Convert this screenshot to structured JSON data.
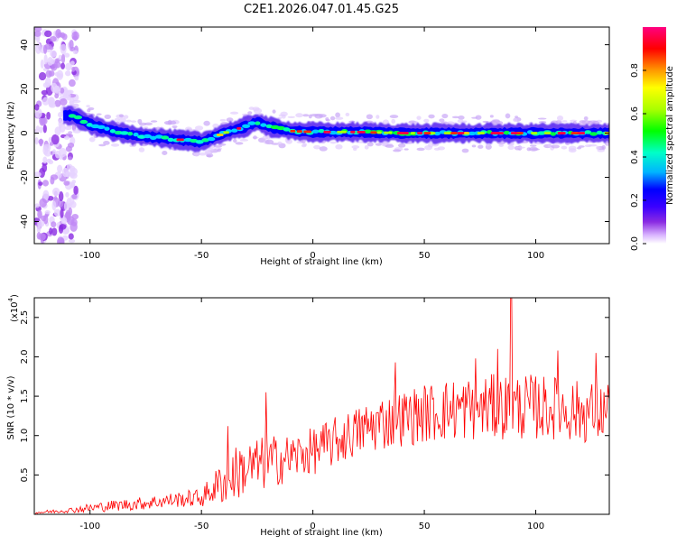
{
  "title": "C2E1.2026.047.01.45.G25",
  "chart_data": [
    {
      "type": "heatmap",
      "title": "C2E1.2026.047.01.45.G25",
      "xlabel": "Height of straight line (km)",
      "ylabel": "Frequency (Hz)",
      "xlim": [
        -125,
        133
      ],
      "ylim": [
        -50,
        48
      ],
      "xticks": [
        -100,
        -50,
        0,
        50,
        100
      ],
      "yticks": [
        -40,
        -20,
        0,
        20,
        40
      ],
      "colorbar": {
        "label": "Normalized spectral amplitude",
        "range": [
          0,
          1
        ],
        "ticks": [
          0.0,
          0.2,
          0.4,
          0.6,
          0.8
        ],
        "colors": [
          "#ffffff",
          "#d9b3ff",
          "#8a2be2",
          "#3a00ff",
          "#0000ff",
          "#00b4ff",
          "#00ffc8",
          "#00ff00",
          "#aaff00",
          "#ffff00",
          "#ff9900",
          "#ff0000",
          "#ff0080"
        ]
      },
      "ridge": {
        "x": [
          -108,
          -100,
          -90,
          -80,
          -70,
          -60,
          -50,
          -40,
          -30,
          -25,
          -20,
          -10,
          0,
          20,
          40,
          60,
          80,
          100,
          133
        ],
        "frequency_hz": [
          8,
          4,
          1,
          -1,
          -2,
          -3,
          -4,
          0,
          3,
          5,
          3,
          1,
          0.5,
          0.5,
          0,
          0,
          0,
          0,
          0
        ]
      }
    },
    {
      "type": "line",
      "xlabel": "Height of straight line (km)",
      "ylabel": "SNR (10 * v/v)",
      "multiplier_base": "(x10",
      "multiplier_exp": "4",
      "multiplier_close": ")",
      "xlim": [
        -125,
        133
      ],
      "ylim": [
        0,
        2.75
      ],
      "xticks": [
        -100,
        -50,
        0,
        50,
        100
      ],
      "yticks": [
        0.5,
        1.0,
        1.5,
        2.0,
        2.5
      ],
      "color": "#ff0000",
      "envelope": {
        "x": [
          -125,
          -110,
          -100,
          -90,
          -80,
          -70,
          -60,
          -50,
          -45,
          -40,
          -35,
          -30,
          -20,
          -10,
          0,
          10,
          20,
          30,
          40,
          50,
          60,
          70,
          80,
          90,
          100,
          110,
          120,
          133
        ],
        "mean": [
          0.02,
          0.05,
          0.08,
          0.11,
          0.13,
          0.16,
          0.19,
          0.21,
          0.32,
          0.42,
          0.52,
          0.58,
          0.66,
          0.72,
          0.8,
          0.92,
          1.05,
          1.16,
          1.22,
          1.28,
          1.32,
          1.35,
          1.36,
          1.37,
          1.36,
          1.35,
          1.3,
          1.3
        ],
        "amplitude": [
          0.02,
          0.03,
          0.06,
          0.07,
          0.08,
          0.09,
          0.1,
          0.12,
          0.2,
          0.3,
          0.35,
          0.35,
          0.35,
          0.3,
          0.3,
          0.32,
          0.32,
          0.36,
          0.36,
          0.38,
          0.4,
          0.42,
          0.42,
          0.42,
          0.42,
          0.4,
          0.4,
          0.4
        ]
      },
      "peaks": [
        {
          "x": -21,
          "y": 1.55
        },
        {
          "x": -38,
          "y": 1.12
        },
        {
          "x": 37,
          "y": 1.93
        },
        {
          "x": 73,
          "y": 1.98
        },
        {
          "x": 83,
          "y": 2.1
        },
        {
          "x": 89,
          "y": 2.75
        },
        {
          "x": 110,
          "y": 2.08
        },
        {
          "x": 127,
          "y": 2.05
        }
      ]
    }
  ]
}
